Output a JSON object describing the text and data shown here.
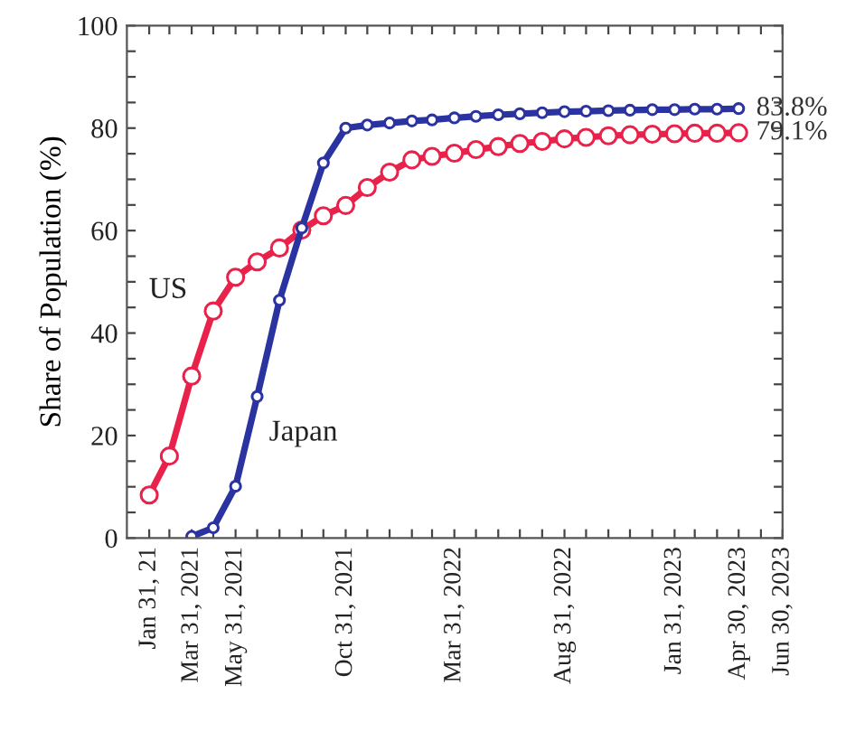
{
  "chart_data": {
    "type": "line",
    "ylabel": "Share of Population (%)",
    "marker": "circle",
    "line_style": "solid",
    "grid": false,
    "legend": false,
    "xlim": [
      "2020-12-31",
      "2023-06-30"
    ],
    "ylim": [
      0,
      100
    ],
    "xticks": [
      {
        "value": "2021-01-31",
        "label": "Jan 31, 21"
      },
      {
        "value": "2021-02-28",
        "label": null
      },
      {
        "value": "2021-03-31",
        "label": "Mar 31, 2021"
      },
      {
        "value": "2021-04-30",
        "label": null
      },
      {
        "value": "2021-05-31",
        "label": "May 31, 2021"
      },
      {
        "value": "2021-06-30",
        "label": null
      },
      {
        "value": "2021-07-31",
        "label": null
      },
      {
        "value": "2021-08-31",
        "label": null
      },
      {
        "value": "2021-09-30",
        "label": null
      },
      {
        "value": "2021-10-31",
        "label": "Oct 31, 2021"
      },
      {
        "value": "2021-11-30",
        "label": null
      },
      {
        "value": "2021-12-31",
        "label": null
      },
      {
        "value": "2022-01-31",
        "label": null
      },
      {
        "value": "2022-02-28",
        "label": null
      },
      {
        "value": "2022-03-31",
        "label": "Mar 31, 2022"
      },
      {
        "value": "2022-04-30",
        "label": null
      },
      {
        "value": "2022-05-31",
        "label": null
      },
      {
        "value": "2022-06-30",
        "label": null
      },
      {
        "value": "2022-07-31",
        "label": null
      },
      {
        "value": "2022-08-31",
        "label": "Aug 31, 2022"
      },
      {
        "value": "2022-09-30",
        "label": null
      },
      {
        "value": "2022-10-31",
        "label": null
      },
      {
        "value": "2022-11-30",
        "label": null
      },
      {
        "value": "2022-12-31",
        "label": null
      },
      {
        "value": "2023-01-31",
        "label": "Jan 31, 2023"
      },
      {
        "value": "2023-02-28",
        "label": null
      },
      {
        "value": "2023-03-31",
        "label": null
      },
      {
        "value": "2023-04-30",
        "label": "Apr 30, 2023"
      },
      {
        "value": "2023-05-31",
        "label": null
      },
      {
        "value": "2023-06-30",
        "label": "Jun 30, 2023"
      }
    ],
    "yticks": [
      0,
      {
        "value": 5,
        "label": null
      },
      {
        "value": 10,
        "label": null
      },
      {
        "value": 15,
        "label": null
      },
      20,
      {
        "value": 25,
        "label": null
      },
      {
        "value": 30,
        "label": null
      },
      {
        "value": 35,
        "label": null
      },
      40,
      {
        "value": 45,
        "label": null
      },
      {
        "value": 50,
        "label": null
      },
      {
        "value": 55,
        "label": null
      },
      60,
      {
        "value": 65,
        "label": null
      },
      {
        "value": 70,
        "label": null
      },
      {
        "value": 75,
        "label": null
      },
      80,
      {
        "value": 85,
        "label": null
      },
      {
        "value": 90,
        "label": null
      },
      {
        "value": 95,
        "label": null
      },
      100
    ],
    "series": [
      {
        "name": "US",
        "color": "#e8224a",
        "x": [
          "2021-01-31",
          "2021-02-28",
          "2021-03-31",
          "2021-04-30",
          "2021-05-31",
          "2021-06-30",
          "2021-07-31",
          "2021-08-31",
          "2021-09-30",
          "2021-10-31",
          "2021-11-30",
          "2021-12-31",
          "2022-01-31",
          "2022-02-28",
          "2022-03-31",
          "2022-04-30",
          "2022-05-31",
          "2022-06-30",
          "2022-07-31",
          "2022-08-31",
          "2022-09-30",
          "2022-10-31",
          "2022-11-30",
          "2022-12-31",
          "2023-01-31",
          "2023-02-28",
          "2023-03-31",
          "2023-04-30"
        ],
        "values": [
          8.4,
          16,
          31.6,
          44.3,
          50.9,
          53.9,
          56.6,
          60.1,
          62.9,
          64.9,
          68.4,
          71.4,
          73.8,
          74.5,
          75.1,
          75.8,
          76.4,
          77.0,
          77.4,
          77.9,
          78.2,
          78.5,
          78.7,
          78.8,
          78.9,
          79.0,
          79.0,
          79.1
        ],
        "value_labels": [
          null,
          null,
          null,
          null,
          null,
          null,
          null,
          null,
          null,
          null,
          null,
          null,
          null,
          null,
          null,
          null,
          null,
          null,
          null,
          null,
          null,
          null,
          null,
          null,
          null,
          null,
          null,
          "79.1%"
        ]
      },
      {
        "name": "Japan",
        "color": "#2a33a0",
        "x": [
          "2021-03-31",
          "2021-04-30",
          "2021-05-31",
          "2021-06-30",
          "2021-07-31",
          "2021-08-31",
          "2021-09-30",
          "2021-10-31",
          "2021-11-30",
          "2021-12-31",
          "2022-01-31",
          "2022-02-28",
          "2022-03-31",
          "2022-04-30",
          "2022-05-31",
          "2022-06-30",
          "2022-07-31",
          "2022-08-31",
          "2022-09-30",
          "2022-10-31",
          "2022-11-30",
          "2022-12-31",
          "2023-01-31",
          "2023-02-28",
          "2023-03-31",
          "2023-04-30"
        ],
        "values": [
          0.3,
          2,
          10.1,
          27.6,
          46.4,
          60.5,
          73.2,
          80.0,
          80.6,
          81.0,
          81.4,
          81.6,
          82.0,
          82.3,
          82.6,
          82.8,
          83.0,
          83.2,
          83.3,
          83.4,
          83.5,
          83.6,
          83.6,
          83.7,
          83.7,
          83.8
        ],
        "value_labels": [
          null,
          null,
          null,
          null,
          null,
          null,
          null,
          null,
          null,
          null,
          null,
          null,
          null,
          null,
          null,
          null,
          null,
          null,
          null,
          null,
          null,
          null,
          null,
          null,
          null,
          "83.8%"
        ]
      }
    ]
  }
}
